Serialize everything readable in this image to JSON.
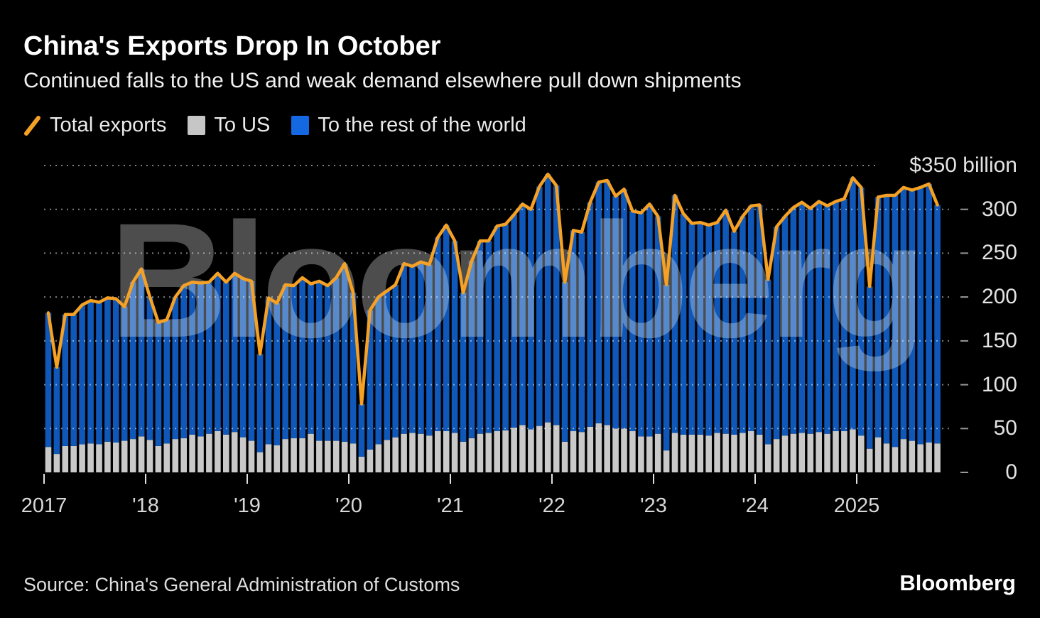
{
  "header": {
    "title": "China's Exports Drop In October",
    "subtitle": "Continued falls to the US and weak demand elsewhere pull down shipments"
  },
  "legend": [
    {
      "label": "Total exports",
      "swatch": "orange-slash"
    },
    {
      "label": "To US",
      "swatch": "gray-square"
    },
    {
      "label": "To the rest of the world",
      "swatch": "blue-square"
    }
  ],
  "watermark": "Bloomberg",
  "footer": {
    "source": "Source: China's General Administration of Customs",
    "brand": "Bloomberg"
  },
  "colors": {
    "background": "#000000",
    "bar_blue": "#0f57b8",
    "bar_gray": "#c9c9c9",
    "line_orange": "#f5a125",
    "legend_blue": "#1468e2",
    "legend_gray": "#c6c6c6",
    "grid": "rgba(255,255,255,0.5)"
  },
  "y_axis": {
    "top_label": "$350 billion",
    "ticks": [
      300,
      250,
      200,
      150,
      100,
      50,
      0
    ]
  },
  "x_axis": {
    "labels": [
      "2017",
      "'18",
      "'19",
      "'20",
      "'21",
      "'22",
      "'23",
      "'24",
      "2025"
    ]
  },
  "chart_data": {
    "type": "bar",
    "subtype": "stacked-bars-with-total-line",
    "title": "China's Exports Drop In October",
    "unit": "USD billion",
    "ylim": [
      0,
      350
    ],
    "y_gridlines": [
      350,
      300,
      250,
      200,
      150,
      100,
      50
    ],
    "grid": "dotted horizontal",
    "legend_position": "top",
    "x": [
      "2017-01",
      "2017-02",
      "2017-03",
      "2017-04",
      "2017-05",
      "2017-06",
      "2017-07",
      "2017-08",
      "2017-09",
      "2017-10",
      "2017-11",
      "2017-12",
      "2018-01",
      "2018-02",
      "2018-03",
      "2018-04",
      "2018-05",
      "2018-06",
      "2018-07",
      "2018-08",
      "2018-09",
      "2018-10",
      "2018-11",
      "2018-12",
      "2019-01",
      "2019-02",
      "2019-03",
      "2019-04",
      "2019-05",
      "2019-06",
      "2019-07",
      "2019-08",
      "2019-09",
      "2019-10",
      "2019-11",
      "2019-12",
      "2020-01",
      "2020-02",
      "2020-03",
      "2020-04",
      "2020-05",
      "2020-06",
      "2020-07",
      "2020-08",
      "2020-09",
      "2020-10",
      "2020-11",
      "2020-12",
      "2021-01",
      "2021-02",
      "2021-03",
      "2021-04",
      "2021-05",
      "2021-06",
      "2021-07",
      "2021-08",
      "2021-09",
      "2021-10",
      "2021-11",
      "2021-12",
      "2022-01",
      "2022-02",
      "2022-03",
      "2022-04",
      "2022-05",
      "2022-06",
      "2022-07",
      "2022-08",
      "2022-09",
      "2022-10",
      "2022-11",
      "2022-12",
      "2023-01",
      "2023-02",
      "2023-03",
      "2023-04",
      "2023-05",
      "2023-06",
      "2023-07",
      "2023-08",
      "2023-09",
      "2023-10",
      "2023-11",
      "2023-12",
      "2024-01",
      "2024-02",
      "2024-03",
      "2024-04",
      "2024-05",
      "2024-06",
      "2024-07",
      "2024-08",
      "2024-09",
      "2024-10",
      "2024-11",
      "2024-12",
      "2025-01",
      "2025-02",
      "2025-03",
      "2025-04",
      "2025-05",
      "2025-06",
      "2025-07",
      "2025-08",
      "2025-09",
      "2025-10"
    ],
    "series": [
      {
        "name": "Total exports",
        "type": "line",
        "color": "#f5a125",
        "values": [
          182,
          120,
          180,
          180,
          191,
          196,
          194,
          199,
          198,
          189,
          217,
          232,
          200,
          171,
          174,
          200,
          213,
          217,
          216,
          217,
          227,
          217,
          227,
          221,
          218,
          135,
          199,
          193,
          214,
          213,
          222,
          215,
          218,
          213,
          222,
          238,
          205,
          78,
          185,
          200,
          207,
          214,
          238,
          235,
          240,
          237,
          268,
          282,
          264,
          205,
          241,
          264,
          264,
          281,
          283,
          294,
          306,
          300,
          326,
          340,
          327,
          217,
          276,
          274,
          308,
          331,
          333,
          315,
          323,
          298,
          296,
          306,
          292,
          214,
          316,
          295,
          284,
          285,
          282,
          285,
          299,
          275,
          292,
          304,
          305,
          220,
          280,
          292,
          302,
          308,
          301,
          309,
          304,
          309,
          312,
          336,
          325,
          212,
          314,
          316,
          316,
          325,
          322,
          325,
          329,
          305
        ]
      },
      {
        "name": "To US",
        "type": "bar",
        "stack": "exports",
        "color": "#c9c9c9",
        "values": [
          29,
          21,
          30,
          30,
          32,
          33,
          32,
          35,
          34,
          36,
          38,
          41,
          37,
          30,
          33,
          38,
          39,
          43,
          41,
          44,
          47,
          43,
          46,
          40,
          36,
          23,
          32,
          31,
          38,
          39,
          39,
          44,
          36,
          36,
          36,
          35,
          33,
          18,
          26,
          32,
          37,
          40,
          44,
          45,
          44,
          42,
          47,
          47,
          45,
          35,
          39,
          44,
          45,
          47,
          48,
          51,
          54,
          49,
          53,
          57,
          54,
          35,
          47,
          46,
          52,
          56,
          54,
          50,
          50,
          47,
          41,
          41,
          44,
          25,
          45,
          43,
          43,
          43,
          42,
          45,
          44,
          43,
          45,
          47,
          43,
          32,
          38,
          42,
          44,
          45,
          44,
          46,
          44,
          47,
          47,
          49,
          42,
          27,
          40,
          33,
          29,
          38,
          36,
          32,
          34,
          33
        ]
      },
      {
        "name": "To the rest of the world",
        "type": "bar",
        "stack": "exports",
        "color": "#0f57b8",
        "values": [
          153,
          99,
          150,
          150,
          159,
          163,
          162,
          164,
          164,
          153,
          179,
          191,
          163,
          141,
          141,
          162,
          174,
          174,
          175,
          173,
          180,
          174,
          181,
          181,
          182,
          112,
          167,
          162,
          176,
          174,
          183,
          171,
          182,
          177,
          186,
          203,
          172,
          60,
          159,
          168,
          170,
          174,
          194,
          190,
          196,
          195,
          221,
          235,
          219,
          170,
          202,
          220,
          219,
          234,
          235,
          243,
          252,
          251,
          273,
          283,
          273,
          182,
          229,
          228,
          256,
          275,
          279,
          265,
          273,
          251,
          255,
          265,
          248,
          189,
          271,
          252,
          241,
          242,
          240,
          240,
          255,
          232,
          247,
          257,
          262,
          188,
          242,
          250,
          258,
          263,
          257,
          263,
          260,
          262,
          265,
          287,
          283,
          185,
          274,
          283,
          287,
          287,
          286,
          293,
          295,
          272
        ]
      }
    ]
  }
}
